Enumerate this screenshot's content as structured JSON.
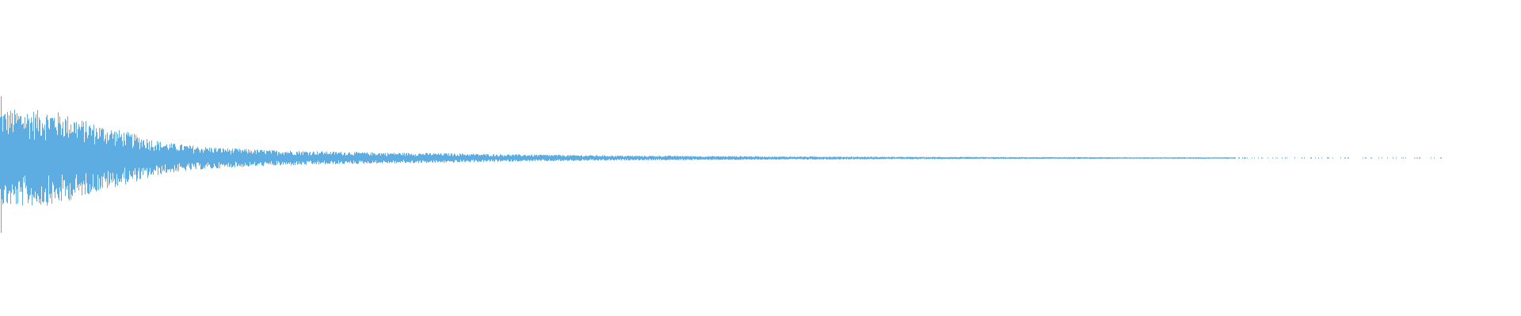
{
  "waveform": {
    "color": "#5dade2",
    "initial_peak": 0.95,
    "envelope": [
      0.62,
      0.6,
      0.45,
      0.33,
      0.2,
      0.15,
      0.12,
      0.1,
      0.09,
      0.08,
      0.07,
      0.065,
      0.06,
      0.05,
      0.045,
      0.04,
      0.035,
      0.03,
      0.03,
      0.025,
      0.025,
      0.02,
      0.02,
      0.018,
      0.016,
      0.015,
      0.014,
      0.013,
      0.012,
      0.012,
      0.011,
      0.01,
      0.01,
      0.01,
      0.009,
      0.009,
      0.008,
      0.008,
      0.008,
      0.007
    ],
    "sparse_tail_fraction": 0.15
  }
}
